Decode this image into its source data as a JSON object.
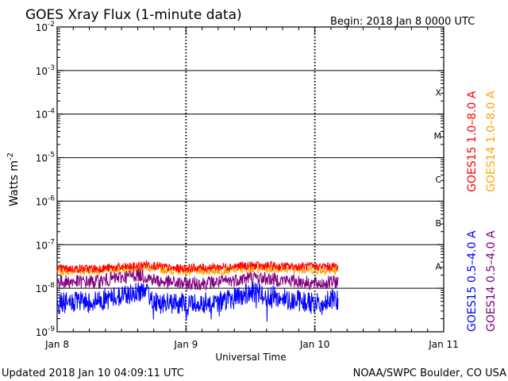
{
  "chart_data": {
    "type": "line",
    "title": "GOES Xray Flux (1-minute data)",
    "begin_text": "Begin:  2018 Jan 8 0000 UTC",
    "xlabel": "Universal Time",
    "ylabel": "Watts m",
    "ylabel_exp": "-2",
    "x_ticks": [
      "Jan 8",
      "Jan 9",
      "Jan 10",
      "Jan 11"
    ],
    "x_range_days": [
      0,
      3
    ],
    "y_range_log10": [
      -9,
      -2
    ],
    "y_tick_base": "10",
    "y_tick_exponents": [
      "-9",
      "-8",
      "-7",
      "-6",
      "-5",
      "-4",
      "-3",
      "-2"
    ],
    "flare_classes": [
      "A",
      "B",
      "C",
      "M",
      "X"
    ],
    "flare_class_log10": [
      -7.5,
      -6.5,
      -5.5,
      -4.5,
      -3.5
    ],
    "legend_long": [
      {
        "label": "GOES15 1.0–8.0 A",
        "color": "#ff0000"
      },
      {
        "label": "GOES14 1.0–8.0 A",
        "color": "#ffa500"
      }
    ],
    "legend_short": [
      {
        "label": "GOES15 0.5–4.0 A",
        "color": "#0000ff"
      },
      {
        "label": "GOES14 0.5–4.0 A",
        "color": "#800080"
      }
    ],
    "series": [
      {
        "name": "GOES14 1.0-8.0 A",
        "color": "#ffa500",
        "x_days": [
          0.0,
          0.3,
          0.6,
          0.7,
          0.9,
          1.2,
          1.5,
          1.8,
          2.0,
          2.18
        ],
        "log10_flux": [
          -7.6,
          -7.6,
          -7.55,
          -7.52,
          -7.6,
          -7.6,
          -7.55,
          -7.55,
          -7.58,
          -7.6
        ]
      },
      {
        "name": "GOES15 1.0-8.0 A",
        "color": "#ff0000",
        "x_days": [
          0.0,
          0.3,
          0.6,
          0.7,
          0.9,
          1.2,
          1.5,
          1.8,
          2.0,
          2.18
        ],
        "log10_flux": [
          -7.55,
          -7.55,
          -7.5,
          -7.45,
          -7.55,
          -7.52,
          -7.48,
          -7.5,
          -7.5,
          -7.5
        ]
      },
      {
        "name": "GOES14 0.5-4.0 A",
        "color": "#800080",
        "x_days": [
          0.0,
          0.3,
          0.6,
          0.65,
          0.8,
          1.0,
          1.3,
          1.5,
          1.7,
          1.9,
          2.0,
          2.18
        ],
        "log10_flux": [
          -7.85,
          -7.85,
          -7.7,
          -7.7,
          -7.85,
          -7.9,
          -7.85,
          -7.75,
          -7.8,
          -7.85,
          -7.9,
          -7.85
        ]
      },
      {
        "name": "GOES15 0.5-4.0 A",
        "color": "#0000ff",
        "x_days": [
          0.0,
          0.3,
          0.6,
          0.65,
          0.8,
          1.0,
          1.3,
          1.5,
          1.7,
          1.9,
          2.0,
          2.18
        ],
        "log10_flux": [
          -8.35,
          -8.3,
          -8.1,
          -8.05,
          -8.35,
          -8.35,
          -8.3,
          -8.1,
          -8.2,
          -8.3,
          -8.35,
          -8.25
        ]
      }
    ]
  },
  "footer": {
    "updated": "Updated 2018 Jan 10 04:09:11 UTC",
    "credit": "NOAA/SWPC Boulder, CO USA"
  }
}
